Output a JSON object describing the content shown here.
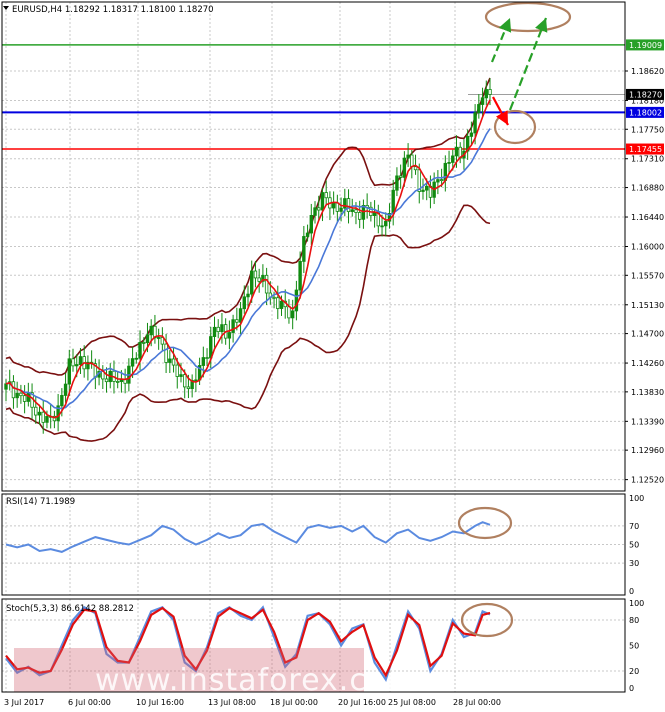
{
  "header": {
    "symbol_info": "EURUSD,H4  1.18292 1.18317 1.18100 1.18270"
  },
  "watermark": "www.instaforex.com",
  "colors": {
    "candle": "#108a10",
    "bollinger": "#7a1010",
    "ma_fast": "#e81010",
    "ma_slow": "#4a78d8",
    "target_line": "#28a028",
    "pivot_line": "#0000e0",
    "support_line": "#ff0000",
    "ellipse": "#b08060",
    "rsi_line": "#5b8be0",
    "stoch_main": "#5b8be0",
    "stoch_signal": "#e01010",
    "grid": "#c8c8c8",
    "current_price_bg": "#000000"
  },
  "chart_data": [
    {
      "type": "candlestick",
      "title": "",
      "y_ticks": [
        "1.18620",
        "1.18180",
        "1.17750",
        "1.17310",
        "1.16880",
        "1.16440",
        "1.16000",
        "1.15570",
        "1.15130",
        "1.14700",
        "1.14260",
        "1.13830",
        "1.13390",
        "1.12960",
        "1.12520"
      ],
      "ylim": [
        1.1238,
        1.1962
      ],
      "x_ticks": [
        "3 Jul 2017",
        "6 Jul 00:00",
        "10 Jul 16:00",
        "13 Jul 08:00",
        "18 Jul 00:00",
        "20 Jul 16:00",
        "25 Jul 08:00",
        "28 Jul 00:00"
      ],
      "horizontal_levels": [
        {
          "label": "1.19009",
          "value": 1.19009,
          "role": "target"
        },
        {
          "label": "1.18270",
          "value": 1.1827,
          "role": "current"
        },
        {
          "label": "1.18002",
          "value": 1.18002,
          "role": "pivot"
        },
        {
          "label": "1.17455",
          "value": 1.17455,
          "role": "support"
        }
      ],
      "indicators": [
        "Bollinger Bands",
        "fast MA",
        "slow MA"
      ],
      "grid": true,
      "anchor_closes": [
        [
          0,
          1.1395
        ],
        [
          3,
          1.138
        ],
        [
          6,
          1.137
        ],
        [
          9,
          1.1348
        ],
        [
          12,
          1.1338
        ],
        [
          14,
          1.136
        ],
        [
          17,
          1.142
        ],
        [
          20,
          1.1432
        ],
        [
          24,
          1.1412
        ],
        [
          28,
          1.1402
        ],
        [
          31,
          1.1398
        ],
        [
          34,
          1.1426
        ],
        [
          38,
          1.1475
        ],
        [
          41,
          1.1462
        ],
        [
          44,
          1.1428
        ],
        [
          47,
          1.14
        ],
        [
          50,
          1.1392
        ],
        [
          53,
          1.143
        ],
        [
          56,
          1.1478
        ],
        [
          59,
          1.147
        ],
        [
          63,
          1.15
        ],
        [
          66,
          1.156
        ],
        [
          69,
          1.1545
        ],
        [
          72,
          1.152
        ],
        [
          75,
          1.1505
        ],
        [
          77,
          1.15
        ],
        [
          79,
          1.158
        ],
        [
          82,
          1.1648
        ],
        [
          85,
          1.1672
        ],
        [
          88,
          1.166
        ],
        [
          91,
          1.166
        ],
        [
          94,
          1.165
        ],
        [
          97,
          1.1655
        ],
        [
          100,
          1.164
        ],
        [
          102,
          1.1628
        ],
        [
          105,
          1.1705
        ],
        [
          108,
          1.1735
        ],
        [
          111,
          1.1692
        ],
        [
          114,
          1.1678
        ],
        [
          117,
          1.171
        ],
        [
          120,
          1.1735
        ],
        [
          123,
          1.1745
        ],
        [
          126,
          1.179
        ],
        [
          128,
          1.1832
        ],
        [
          130,
          1.1827
        ]
      ]
    },
    {
      "type": "line",
      "title": "RSI(14) 71.1989",
      "y_ticks": [
        "100",
        "70",
        "50",
        "30",
        "0"
      ],
      "ylim": [
        0,
        100
      ],
      "x_range": [
        0,
        130
      ],
      "series": [
        {
          "points": [
            [
              0,
              50
            ],
            [
              3,
              47
            ],
            [
              6,
              50
            ],
            [
              9,
              43
            ],
            [
              12,
              45
            ],
            [
              15,
              42
            ],
            [
              18,
              48
            ],
            [
              21,
              53
            ],
            [
              24,
              58
            ],
            [
              27,
              55
            ],
            [
              30,
              52
            ],
            [
              33,
              50
            ],
            [
              36,
              55
            ],
            [
              39,
              60
            ],
            [
              42,
              70
            ],
            [
              45,
              66
            ],
            [
              48,
              56
            ],
            [
              51,
              50
            ],
            [
              54,
              55
            ],
            [
              57,
              62
            ],
            [
              60,
              57
            ],
            [
              63,
              60
            ],
            [
              66,
              70
            ],
            [
              69,
              72
            ],
            [
              72,
              64
            ],
            [
              75,
              58
            ],
            [
              78,
              52
            ],
            [
              81,
              68
            ],
            [
              84,
              71
            ],
            [
              87,
              68
            ],
            [
              90,
              70
            ],
            [
              93,
              64
            ],
            [
              96,
              70
            ],
            [
              99,
              58
            ],
            [
              102,
              52
            ],
            [
              105,
              62
            ],
            [
              108,
              66
            ],
            [
              111,
              57
            ],
            [
              114,
              54
            ],
            [
              117,
              58
            ],
            [
              120,
              64
            ],
            [
              123,
              62
            ],
            [
              126,
              70
            ],
            [
              128,
              74
            ],
            [
              130,
              71.2
            ]
          ]
        }
      ]
    },
    {
      "type": "line",
      "title": "Stoch(5,3,3) 86.6142 88.2812",
      "y_ticks": [
        "100",
        "80",
        "50",
        "20",
        "0"
      ],
      "ylim": [
        0,
        100
      ],
      "x_range": [
        0,
        130
      ],
      "series": [
        {
          "points": [
            [
              0,
              35
            ],
            [
              3,
              18
            ],
            [
              6,
              25
            ],
            [
              9,
              15
            ],
            [
              12,
              20
            ],
            [
              15,
              50
            ],
            [
              18,
              80
            ],
            [
              21,
              95
            ],
            [
              24,
              88
            ],
            [
              27,
              40
            ],
            [
              30,
              30
            ],
            [
              33,
              30
            ],
            [
              36,
              60
            ],
            [
              39,
              90
            ],
            [
              42,
              95
            ],
            [
              45,
              80
            ],
            [
              48,
              30
            ],
            [
              51,
              20
            ],
            [
              54,
              48
            ],
            [
              57,
              88
            ],
            [
              60,
              95
            ],
            [
              63,
              85
            ],
            [
              66,
              80
            ],
            [
              69,
              95
            ],
            [
              72,
              60
            ],
            [
              75,
              25
            ],
            [
              78,
              40
            ],
            [
              81,
              85
            ],
            [
              84,
              88
            ],
            [
              87,
              75
            ],
            [
              90,
              50
            ],
            [
              93,
              70
            ],
            [
              96,
              75
            ],
            [
              99,
              30
            ],
            [
              102,
              10
            ],
            [
              105,
              50
            ],
            [
              108,
              90
            ],
            [
              111,
              70
            ],
            [
              114,
              20
            ],
            [
              117,
              40
            ],
            [
              120,
              80
            ],
            [
              123,
              60
            ],
            [
              126,
              65
            ],
            [
              128,
              90
            ],
            [
              130,
              86.6
            ]
          ]
        },
        {
          "points": [
            [
              0,
              38
            ],
            [
              3,
              22
            ],
            [
              6,
              24
            ],
            [
              9,
              18
            ],
            [
              12,
              20
            ],
            [
              15,
              45
            ],
            [
              18,
              75
            ],
            [
              21,
              92
            ],
            [
              24,
              90
            ],
            [
              27,
              48
            ],
            [
              30,
              32
            ],
            [
              33,
              30
            ],
            [
              36,
              55
            ],
            [
              39,
              86
            ],
            [
              42,
              94
            ],
            [
              45,
              84
            ],
            [
              48,
              38
            ],
            [
              51,
              22
            ],
            [
              54,
              44
            ],
            [
              57,
              84
            ],
            [
              60,
              94
            ],
            [
              63,
              88
            ],
            [
              66,
              82
            ],
            [
              69,
              92
            ],
            [
              72,
              66
            ],
            [
              75,
              30
            ],
            [
              78,
              36
            ],
            [
              81,
              80
            ],
            [
              84,
              88
            ],
            [
              87,
              78
            ],
            [
              90,
              55
            ],
            [
              93,
              66
            ],
            [
              96,
              74
            ],
            [
              99,
              36
            ],
            [
              102,
              15
            ],
            [
              105,
              44
            ],
            [
              108,
              86
            ],
            [
              111,
              74
            ],
            [
              114,
              26
            ],
            [
              117,
              38
            ],
            [
              120,
              76
            ],
            [
              123,
              64
            ],
            [
              126,
              62
            ],
            [
              128,
              86
            ],
            [
              130,
              88.3
            ]
          ]
        }
      ]
    }
  ]
}
